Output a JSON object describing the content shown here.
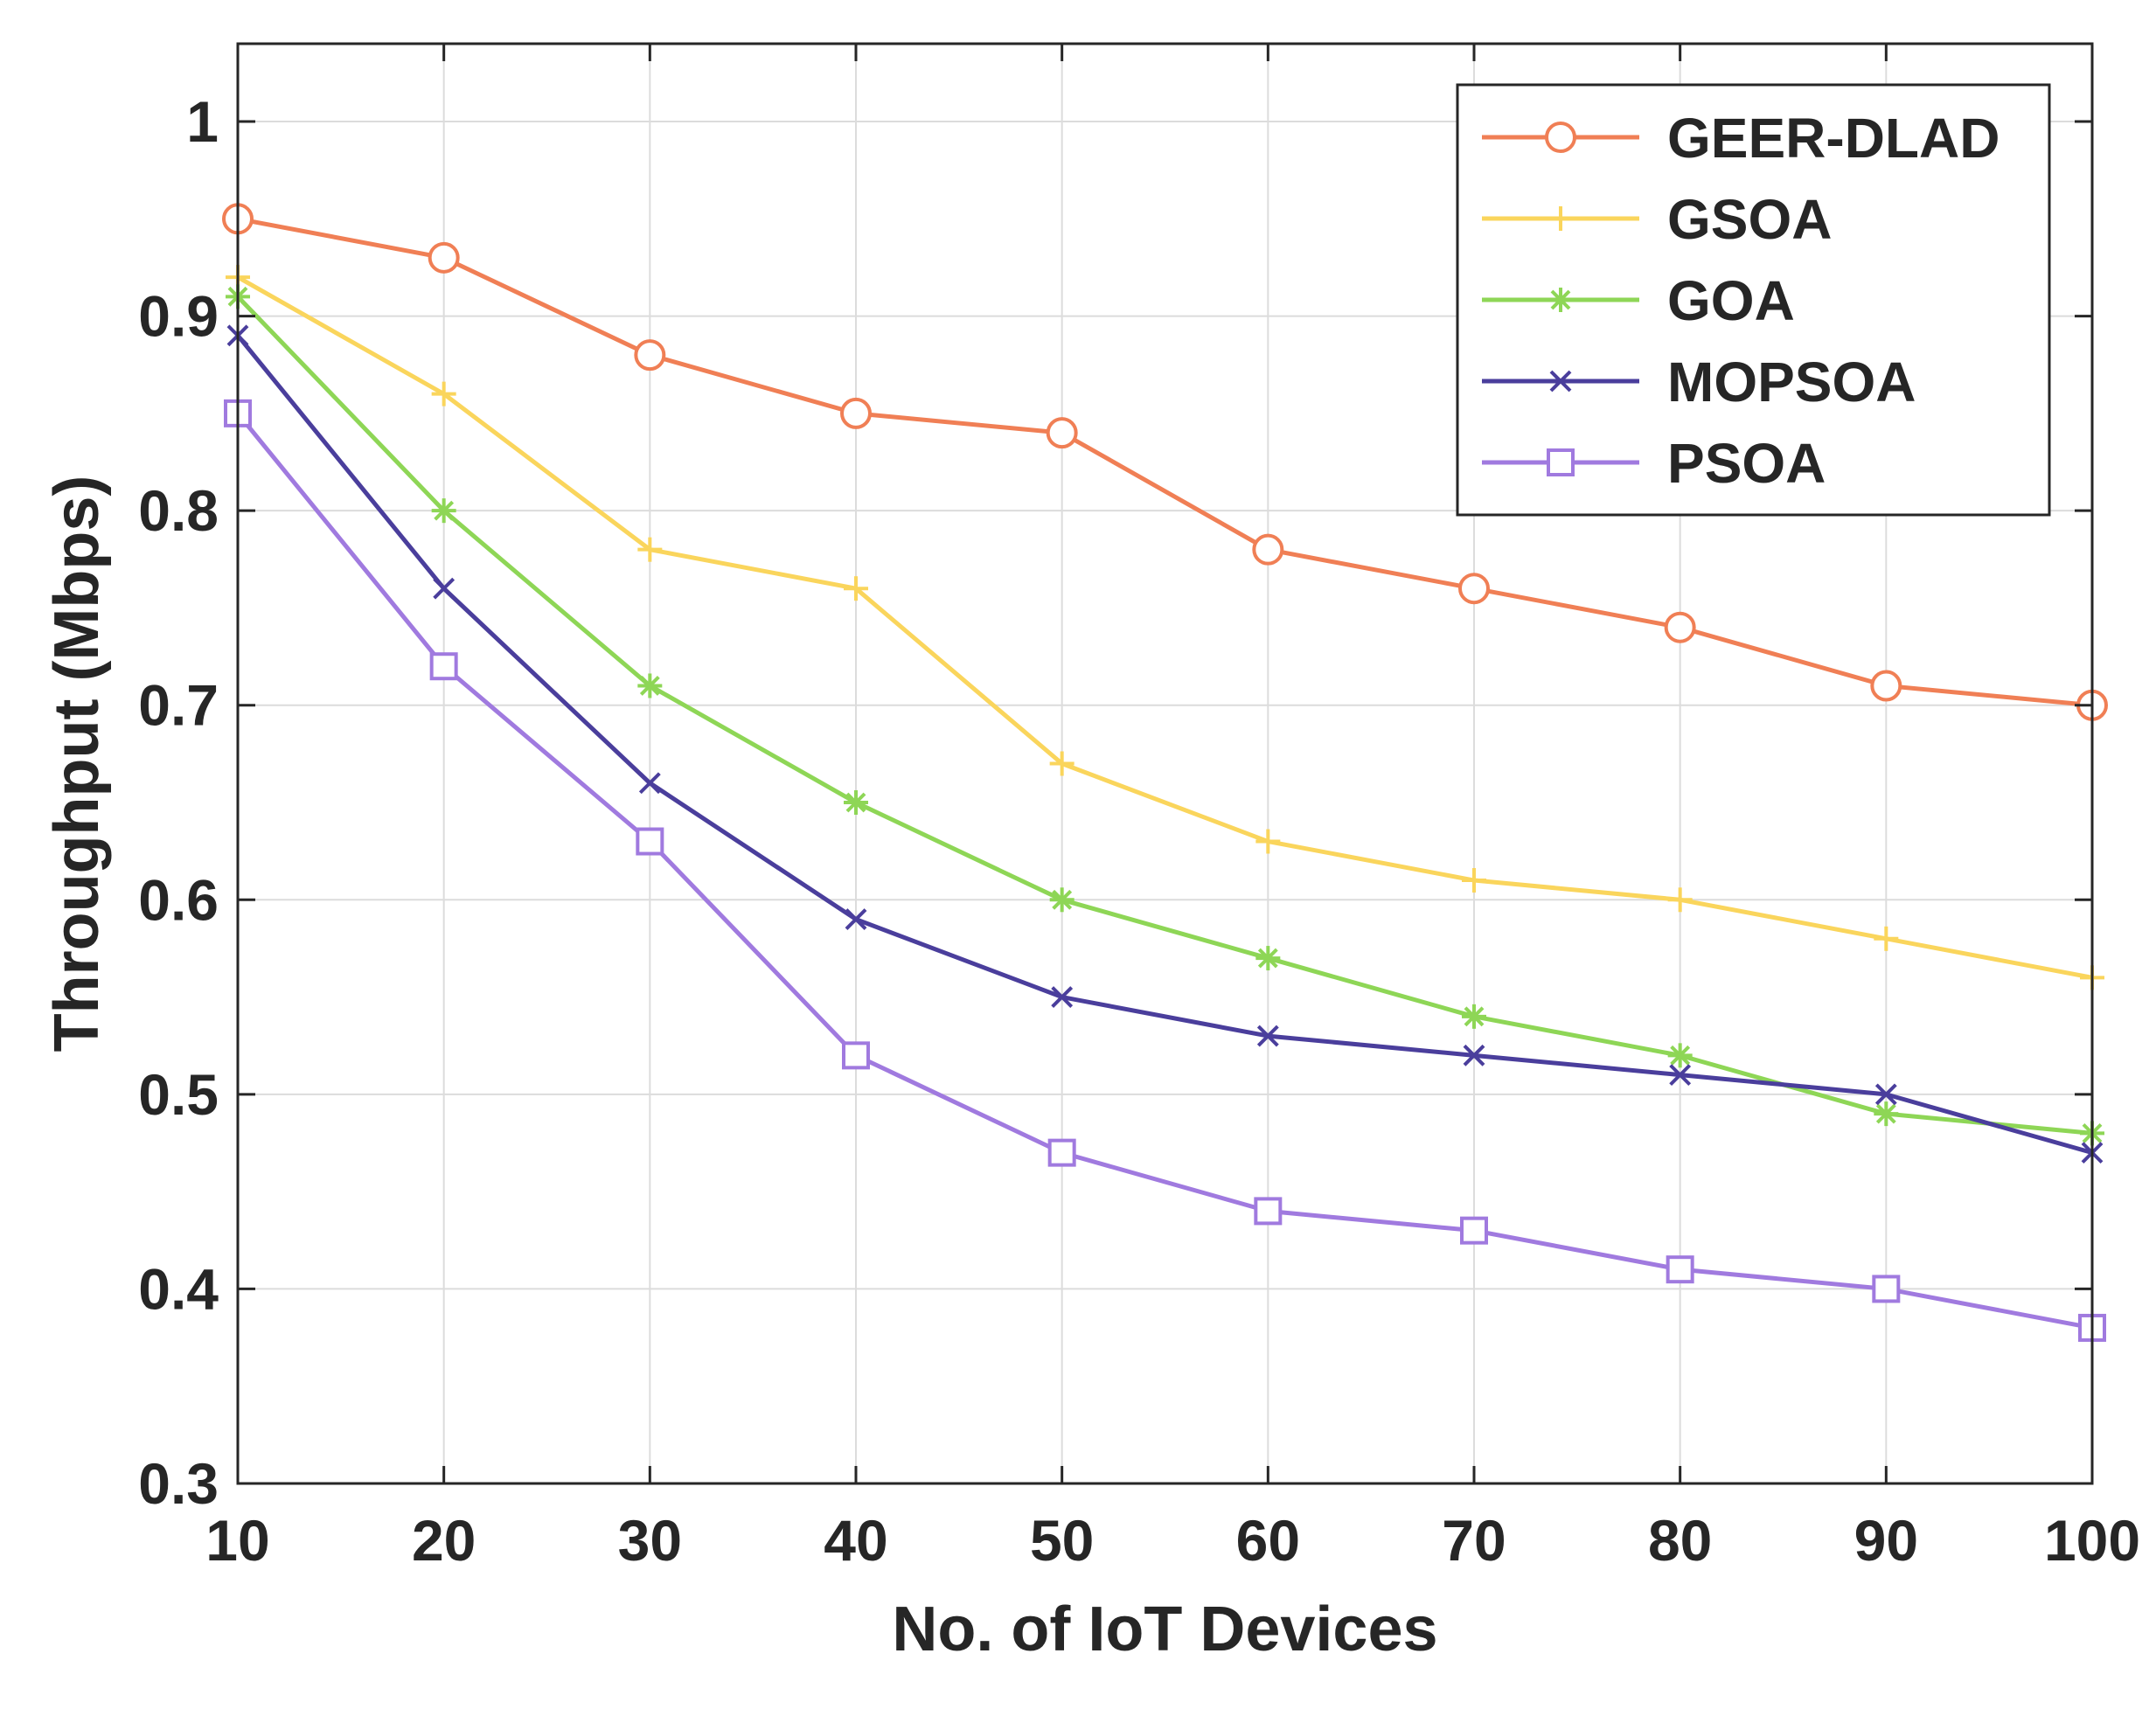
{
  "chart_data": {
    "type": "line",
    "title": "",
    "xlabel": "No. of IoT Devices",
    "ylabel": "Throughput (Mbps)",
    "x": [
      10,
      20,
      30,
      40,
      50,
      60,
      70,
      80,
      90,
      100
    ],
    "xlim": [
      10,
      100
    ],
    "ylim": [
      0.3,
      1.04
    ],
    "xticks": [
      "10",
      "20",
      "30",
      "40",
      "50",
      "60",
      "70",
      "80",
      "90",
      "100"
    ],
    "yticks": [
      "0.3",
      "0.4",
      "0.5",
      "0.6",
      "0.7",
      "0.8",
      "0.9",
      "1"
    ],
    "ytick_values": [
      0.3,
      0.4,
      0.5,
      0.6,
      0.7,
      0.8,
      0.9,
      1.0
    ],
    "grid": true,
    "legend_position": "top-right",
    "series": [
      {
        "name": "GEER-DLAD",
        "color": "#F07F55",
        "marker": "circle",
        "values": [
          0.95,
          0.93,
          0.88,
          0.85,
          0.84,
          0.78,
          0.76,
          0.74,
          0.71,
          0.7
        ]
      },
      {
        "name": "GSOA",
        "color": "#FAD55C",
        "marker": "plus",
        "values": [
          0.92,
          0.86,
          0.78,
          0.76,
          0.67,
          0.63,
          0.61,
          0.6,
          0.58,
          0.56
        ]
      },
      {
        "name": "GOA",
        "color": "#8ED656",
        "marker": "asterisk",
        "values": [
          0.91,
          0.8,
          0.71,
          0.65,
          0.6,
          0.57,
          0.54,
          0.52,
          0.49,
          0.48
        ]
      },
      {
        "name": "MOPSOA",
        "color": "#4A3E9C",
        "marker": "x",
        "values": [
          0.89,
          0.76,
          0.66,
          0.59,
          0.55,
          0.53,
          0.52,
          0.51,
          0.5,
          0.47
        ]
      },
      {
        "name": "PSOA",
        "color": "#A07ADF",
        "marker": "square",
        "values": [
          0.85,
          0.72,
          0.63,
          0.52,
          0.47,
          0.44,
          0.43,
          0.41,
          0.4,
          0.38
        ]
      }
    ]
  }
}
